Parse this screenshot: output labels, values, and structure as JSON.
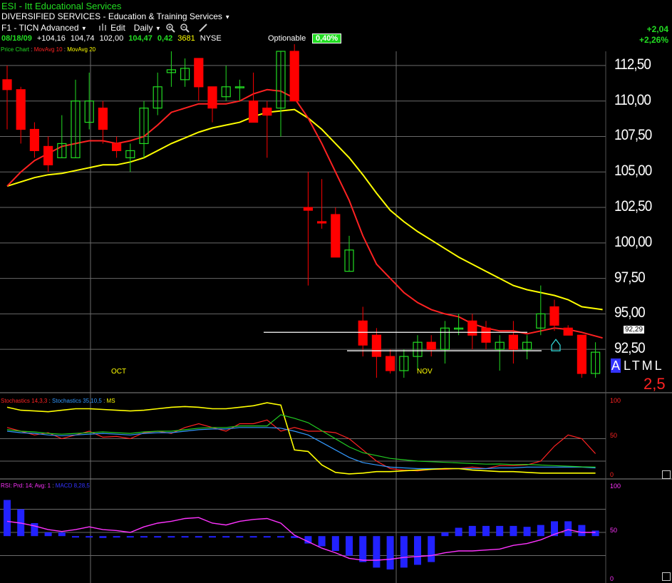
{
  "header": {
    "title": "ESI - Itt Educational Services",
    "industry": "DIVERSIFIED SERVICES - Education & Training Services",
    "layout_name": "F1 - TICN Advanced",
    "edit_label": "Edit",
    "period_label": "Daily"
  },
  "quote": {
    "date": "08/18/09",
    "open": "+104,16",
    "high": "104,74",
    "low": "102,00",
    "last": "104,47",
    "net": "0,42",
    "volume": "3681",
    "exchange": "NYSE",
    "optionable_label": "Optionable",
    "optionable_pct": "0,40%"
  },
  "change": {
    "abs": "+2,04",
    "pct": "+2,26%"
  },
  "price_legend": {
    "chart": "Price Chart",
    "ma10": "MovAvg 10",
    "ma20": "MovAvg 20"
  },
  "price_axis": [
    "112,50",
    "110,00",
    "107,50",
    "105,00",
    "102,50",
    "100,00",
    "97,50",
    "95,00",
    "92,50"
  ],
  "last_price_label": "92,29",
  "month_labels": [
    "OCT",
    "NOV"
  ],
  "altml": {
    "prefix": "A",
    "label": "LTML",
    "value": "2,5"
  },
  "stoch_legend": {
    "a": "Stochastics 14,3,3",
    "b": "Stochastics 35,10,5",
    "c": "MS"
  },
  "stoch_axis": [
    "100",
    "50",
    "0"
  ],
  "rsi_legend": {
    "a": "RSI: Prd: 14; Avg: 1",
    "b": "MACD 8,28,5"
  },
  "rsi_axis": [
    "100",
    "50",
    "0"
  ],
  "colors": {
    "up": "#22dd22",
    "down": "#ff0000",
    "ma10": "#ff2222",
    "ma20": "#ffff00",
    "grid": "#6a6a6a"
  },
  "icons": [
    "chart-bars-icon",
    "zoom-in-icon",
    "zoom-out-icon",
    "draw-pen-icon"
  ],
  "chart_data": [
    {
      "type": "candlestick",
      "title": "Price Chart",
      "ylim": [
        90.5,
        113.5
      ],
      "series_names": [
        "MovAvg 10",
        "MovAvg 20"
      ],
      "candles": [
        {
          "o": 111.5,
          "h": 112.5,
          "l": 108.0,
          "c": 110.8
        },
        {
          "o": 110.8,
          "h": 111.0,
          "l": 107.0,
          "c": 108.0
        },
        {
          "o": 108.0,
          "h": 108.5,
          "l": 106.0,
          "c": 106.5
        },
        {
          "o": 106.8,
          "h": 107.5,
          "l": 105.0,
          "c": 105.5
        },
        {
          "o": 106.0,
          "h": 109.0,
          "l": 106.0,
          "c": 107.0
        },
        {
          "o": 106.0,
          "h": 111.5,
          "l": 106.0,
          "c": 110.0
        },
        {
          "o": 108.5,
          "h": 112.0,
          "l": 108.0,
          "c": 110.0
        },
        {
          "o": 109.5,
          "h": 110.0,
          "l": 107.0,
          "c": 108.0
        },
        {
          "o": 107.0,
          "h": 107.5,
          "l": 106.0,
          "c": 106.5
        },
        {
          "o": 106.0,
          "h": 107.0,
          "l": 105.0,
          "c": 106.5
        },
        {
          "o": 107.0,
          "h": 110.0,
          "l": 106.0,
          "c": 109.5
        },
        {
          "o": 109.5,
          "h": 112.0,
          "l": 109.0,
          "c": 111.0
        },
        {
          "o": 112.0,
          "h": 113.5,
          "l": 111.0,
          "c": 112.2
        },
        {
          "o": 111.5,
          "h": 113.0,
          "l": 111.0,
          "c": 112.3
        },
        {
          "o": 113.0,
          "h": 113.0,
          "l": 110.0,
          "c": 111.0
        },
        {
          "o": 111.0,
          "h": 111.0,
          "l": 108.5,
          "c": 109.5
        },
        {
          "o": 110.3,
          "h": 112.5,
          "l": 110.0,
          "c": 111.0
        },
        {
          "o": 111.0,
          "h": 111.5,
          "l": 110.0,
          "c": 111.0
        },
        {
          "o": 110.0,
          "h": 112.0,
          "l": 108.5,
          "c": 108.5
        },
        {
          "o": 109.5,
          "h": 110.0,
          "l": 106.0,
          "c": 109.0
        },
        {
          "o": 109.5,
          "h": 113.5,
          "l": 107.5,
          "c": 113.5
        },
        {
          "o": 113.5,
          "h": 114.0,
          "l": 110.0,
          "c": 110.0
        },
        {
          "o": 102.5,
          "h": 105.0,
          "l": 97.0,
          "c": 102.3
        },
        {
          "o": 101.5,
          "h": 104.5,
          "l": 101.0,
          "c": 101.4
        },
        {
          "o": 102.0,
          "h": 102.5,
          "l": 99.0,
          "c": 99.0
        },
        {
          "o": 98.0,
          "h": 100.5,
          "l": 98.0,
          "c": 99.5
        },
        {
          "o": 94.5,
          "h": 95.5,
          "l": 92.0,
          "c": 92.8
        },
        {
          "o": 93.5,
          "h": 94.0,
          "l": 90.5,
          "c": 92.0
        },
        {
          "o": 92.0,
          "h": 92.5,
          "l": 90.8,
          "c": 91.0
        },
        {
          "o": 91.0,
          "h": 92.5,
          "l": 90.5,
          "c": 92.0
        },
        {
          "o": 92.0,
          "h": 93.5,
          "l": 91.0,
          "c": 93.0
        },
        {
          "o": 93.0,
          "h": 93.5,
          "l": 92.0,
          "c": 92.5
        },
        {
          "o": 92.5,
          "h": 94.5,
          "l": 91.5,
          "c": 94.0
        },
        {
          "o": 94.0,
          "h": 95.0,
          "l": 93.5,
          "c": 94.0
        },
        {
          "o": 94.5,
          "h": 95.0,
          "l": 92.5,
          "c": 93.5
        },
        {
          "o": 94.0,
          "h": 94.5,
          "l": 92.5,
          "c": 93.0
        },
        {
          "o": 92.5,
          "h": 93.5,
          "l": 91.0,
          "c": 93.0
        },
        {
          "o": 93.5,
          "h": 94.5,
          "l": 91.5,
          "c": 92.5
        },
        {
          "o": 92.5,
          "h": 93.5,
          "l": 91.8,
          "c": 93.0
        },
        {
          "o": 94.0,
          "h": 97.0,
          "l": 93.5,
          "c": 95.0
        },
        {
          "o": 95.5,
          "h": 96.0,
          "l": 93.8,
          "c": 94.2
        },
        {
          "o": 94.0,
          "h": 94.2,
          "l": 93.5,
          "c": 93.5
        },
        {
          "o": 93.5,
          "h": 93.5,
          "l": 90.5,
          "c": 90.8
        },
        {
          "o": 90.8,
          "h": 93.0,
          "l": 90.5,
          "c": 92.3
        }
      ],
      "ma10": [
        104.0,
        105.0,
        105.8,
        106.3,
        106.8,
        107.0,
        107.2,
        107.2,
        107.0,
        107.2,
        107.5,
        108.3,
        109.2,
        109.5,
        109.8,
        109.8,
        109.8,
        110.0,
        110.5,
        110.8,
        110.7,
        110.2,
        108.8,
        107.0,
        105.0,
        103.0,
        100.5,
        98.5,
        97.5,
        96.5,
        95.8,
        95.3,
        95.0,
        94.8,
        94.3,
        94.0,
        93.8,
        93.8,
        93.6,
        93.8,
        94.0,
        93.9,
        93.7,
        93.3
      ],
      "ma20": [
        104.0,
        104.3,
        104.6,
        104.8,
        104.9,
        105.1,
        105.3,
        105.5,
        105.5,
        105.7,
        106.0,
        106.5,
        107.0,
        107.4,
        107.8,
        108.1,
        108.3,
        108.5,
        108.9,
        109.2,
        109.3,
        109.4,
        108.8,
        108.0,
        107.0,
        106.0,
        104.8,
        103.5,
        102.3,
        101.5,
        100.8,
        100.2,
        99.6,
        99.0,
        98.5,
        98.0,
        97.5,
        97.0,
        96.7,
        96.5,
        96.3,
        96.0,
        95.5,
        95.3
      ],
      "support_lines": [
        93.7,
        92.4
      ],
      "last_price": 92.29
    },
    {
      "type": "line",
      "title": "Stochastics",
      "ylim": [
        0,
        100
      ],
      "series": [
        {
          "name": "Stochastics 14,3,3",
          "values": [
            65,
            60,
            55,
            58,
            50,
            55,
            60,
            52,
            53,
            50,
            58,
            60,
            57,
            65,
            70,
            65,
            60,
            70,
            70,
            75,
            60,
            65,
            60,
            60,
            58,
            50,
            35,
            20,
            10,
            8,
            7,
            9,
            9,
            10,
            12,
            10,
            14,
            14,
            15,
            20,
            40,
            55,
            50,
            30
          ]
        },
        {
          "name": "Stochastics 35,10,5",
          "values": [
            60,
            58,
            57,
            55,
            54,
            55,
            56,
            57,
            56,
            55,
            57,
            58,
            58,
            60,
            62,
            63,
            63,
            65,
            65,
            65,
            64,
            60,
            55,
            45,
            35,
            25,
            18,
            15,
            12,
            11,
            10,
            10,
            10,
            10,
            10,
            10,
            11,
            11,
            12,
            12,
            12,
            12,
            12,
            11
          ]
        },
        {
          "name": "MS",
          "values": [
            92,
            88,
            87,
            86,
            88,
            90,
            90,
            89,
            88,
            87,
            88,
            90,
            92,
            93,
            92,
            90,
            90,
            92,
            94,
            98,
            95,
            35,
            33,
            15,
            5,
            3,
            4,
            6,
            6,
            7,
            8,
            9,
            10,
            10,
            8,
            7,
            6,
            6,
            5,
            4,
            4,
            4,
            4,
            4
          ]
        }
      ]
    },
    {
      "type": "bar+line",
      "title": "RSI / MACD",
      "ylim": [
        0,
        100
      ],
      "series": [
        {
          "name": "RSI: Prd: 14; Avg: 1",
          "values": [
            62,
            60,
            57,
            53,
            51,
            53,
            56,
            53,
            52,
            50,
            56,
            60,
            62,
            65,
            66,
            60,
            58,
            62,
            64,
            65,
            60,
            47,
            40,
            33,
            28,
            22,
            20,
            20,
            21,
            23,
            24,
            25,
            28,
            30,
            30,
            31,
            32,
            36,
            38,
            42,
            48,
            53,
            50,
            50
          ]
        },
        {
          "name": "MACD 8,28,5",
          "values": [
            85,
            75,
            60,
            50,
            50,
            45,
            45,
            44,
            45,
            46,
            45,
            46,
            46,
            46,
            46,
            45,
            45,
            46,
            46,
            46,
            46,
            44,
            38,
            35,
            30,
            25,
            18,
            12,
            10,
            12,
            15,
            18,
            50,
            55,
            57,
            57,
            57,
            57,
            56,
            58,
            62,
            62,
            58,
            52
          ]
        }
      ]
    }
  ]
}
